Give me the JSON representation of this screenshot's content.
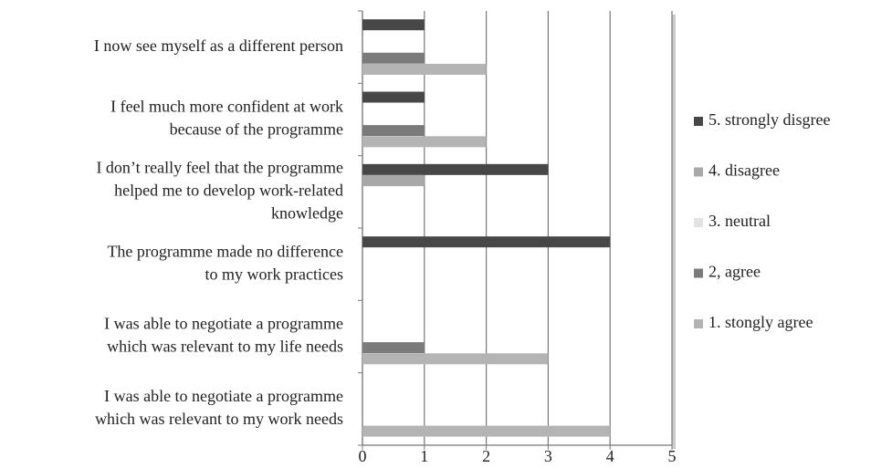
{
  "chart_data": {
    "type": "bar",
    "orientation": "horizontal",
    "categories": [
      [
        "I now see myself as a different person"
      ],
      [
        "I feel much more confident at work",
        "because of the programme"
      ],
      [
        "I don’t really feel that the programme",
        "helped me to develop work-related",
        "knowledge"
      ],
      [
        "The programme made no difference",
        "to my work practices"
      ],
      [
        "I was able to negotiate a programme",
        "which was relevant to my life needs"
      ],
      [
        "I was able to negotiate a programme",
        "which was relevant to my work needs"
      ]
    ],
    "series": [
      {
        "name": "5. strongly disgree",
        "color": "#474747",
        "values": [
          1,
          1,
          3,
          4,
          0,
          0
        ]
      },
      {
        "name": "4. disagree",
        "color": "#a8a8a8",
        "values": [
          0,
          0,
          1,
          0,
          0,
          0
        ]
      },
      {
        "name": "3. neutral",
        "color": "#e2e2e2",
        "values": [
          0,
          0,
          0,
          0,
          0,
          0
        ]
      },
      {
        "name": "2, agree",
        "color": "#7b7b7b",
        "values": [
          1,
          1,
          0,
          0,
          1,
          0
        ]
      },
      {
        "name": "1. stongly agree",
        "color": "#b4b4b4",
        "values": [
          2,
          2,
          0,
          0,
          3,
          4
        ]
      }
    ],
    "xlim": [
      0,
      5
    ],
    "xticks": [
      0,
      1,
      2,
      3,
      4,
      5
    ],
    "grid": true,
    "legend": "right"
  }
}
